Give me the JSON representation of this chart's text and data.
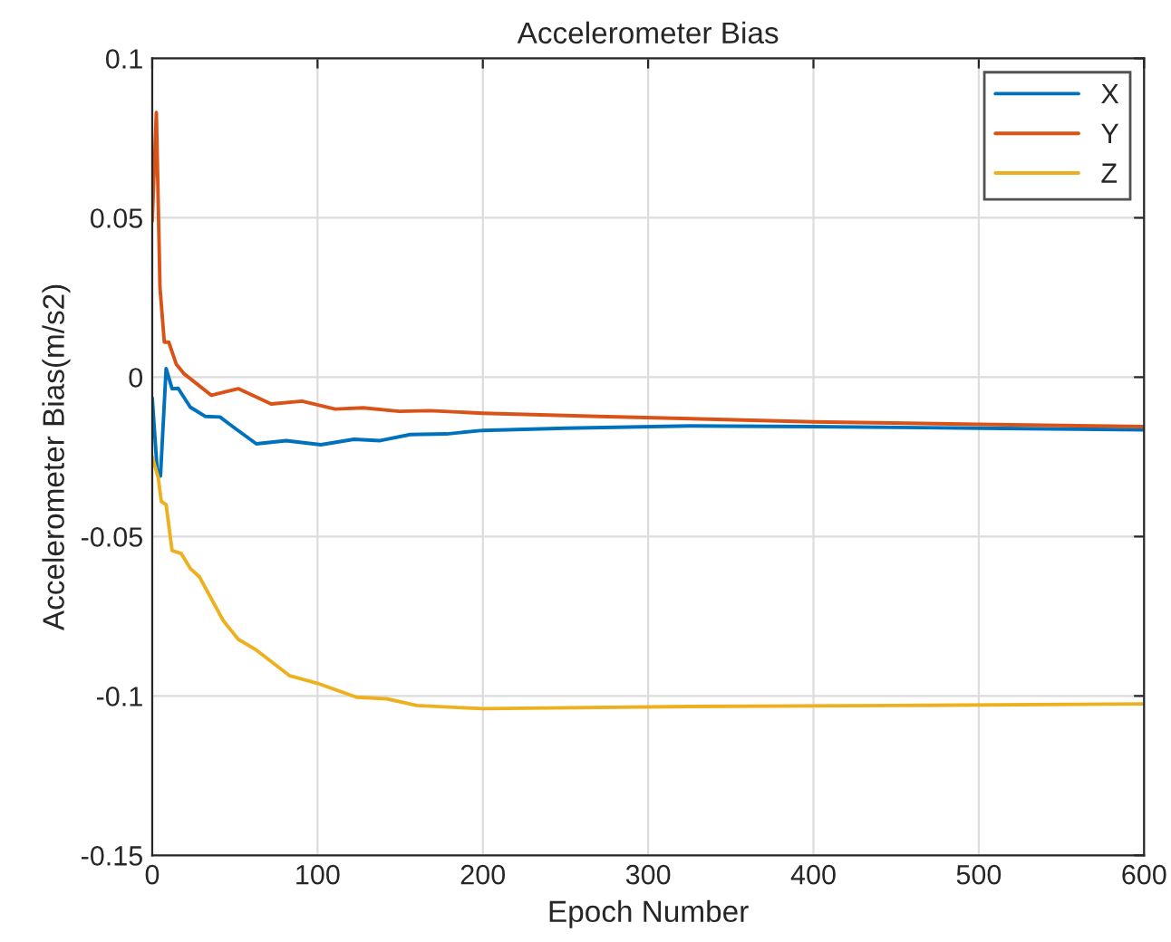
{
  "chart_data": {
    "type": "line",
    "title": "Accelerometer Bias",
    "xlabel": "Epoch Number",
    "ylabel": "Accelerometer Bias(m/s2)",
    "xlim": [
      0,
      600
    ],
    "ylim": [
      -0.15,
      0.1
    ],
    "xticks": [
      0,
      100,
      200,
      300,
      400,
      500,
      600
    ],
    "yticks": [
      {
        "value": -0.15,
        "label": "-0.15"
      },
      {
        "value": -0.1,
        "label": "-0.1"
      },
      {
        "value": -0.05,
        "label": "-0.05"
      },
      0,
      0.05,
      0.1
    ],
    "grid": true,
    "legend": "top right",
    "line_style": "solid",
    "marker": "none",
    "series": [
      {
        "name": "X",
        "color": "#0072bd",
        "x": [
          0,
          3,
          5,
          8.4,
          12,
          15.7,
          23,
          32,
          41,
          50,
          63,
          81,
          102,
          122,
          138,
          156,
          178,
          200,
          250,
          325,
          400,
          500,
          600
        ],
        "values": [
          -0.0065,
          -0.029,
          -0.031,
          0.0027,
          -0.0036,
          -0.0035,
          -0.0094,
          -0.0123,
          -0.0125,
          -0.016,
          -0.0209,
          -0.0199,
          -0.0212,
          -0.0195,
          -0.0199,
          -0.018,
          -0.0178,
          -0.0167,
          -0.016,
          -0.0153,
          -0.0155,
          -0.016,
          -0.0165
        ]
      },
      {
        "name": "Y",
        "color": "#d95319",
        "x": [
          0,
          2.5,
          4.7,
          7.3,
          10,
          14.6,
          19.4,
          24.8,
          35.8,
          52,
          72,
          90.6,
          110.6,
          127.5,
          149.5,
          167.7,
          200,
          270,
          400,
          500,
          600
        ],
        "values": [
          0.049,
          0.083,
          0.028,
          0.011,
          0.011,
          0.004,
          0.001,
          -0.0012,
          -0.0057,
          -0.0036,
          -0.0084,
          -0.0075,
          -0.01,
          -0.0096,
          -0.0107,
          -0.0105,
          -0.0113,
          -0.0123,
          -0.014,
          -0.0148,
          -0.0155
        ]
      },
      {
        "name": "Z",
        "color": "#edb120",
        "x": [
          0,
          3.6,
          5.5,
          8.4,
          12,
          17.5,
          23,
          28.5,
          43,
          52,
          63,
          83.3,
          99.8,
          123.6,
          141.8,
          160,
          200,
          325,
          450,
          600
        ],
        "values": [
          -0.025,
          -0.0314,
          -0.039,
          -0.04,
          -0.0544,
          -0.0553,
          -0.06,
          -0.0626,
          -0.0764,
          -0.0822,
          -0.0856,
          -0.0937,
          -0.096,
          -0.1004,
          -0.1009,
          -0.103,
          -0.104,
          -0.1033,
          -0.103,
          -0.1025
        ]
      }
    ]
  }
}
